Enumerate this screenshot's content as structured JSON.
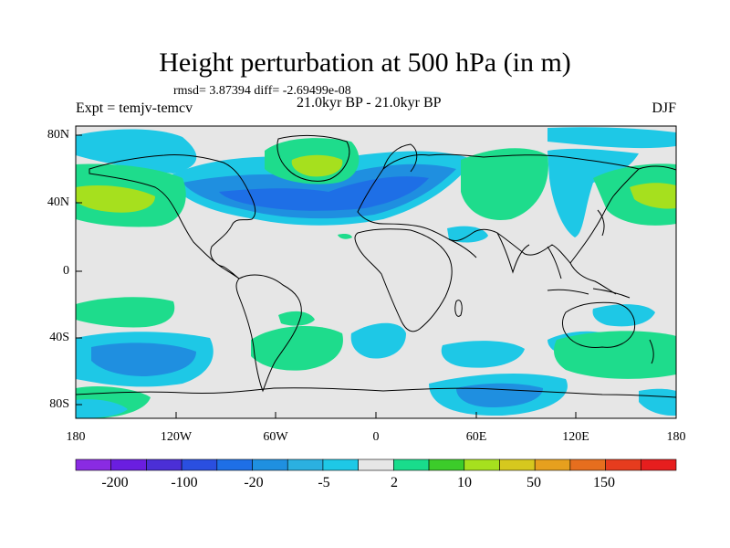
{
  "title": "Height perturbation at 500 hPa (in m)",
  "stats": "rmsd= 3.87394 diff= -2.69499e-08",
  "experiment": "Expt = temjv-temcv",
  "period": "21.0kyr BP - 21.0kyr BP",
  "season": "DJF",
  "lat_labels": [
    "80N",
    "40N",
    "0",
    "40S",
    "80S"
  ],
  "lon_labels": [
    "180",
    "120W",
    "60W",
    "0",
    "60E",
    "120E",
    "180"
  ],
  "colorbar": {
    "colors": [
      "#8a2be2",
      "#6a1ee0",
      "#4b2fd6",
      "#2a4fe0",
      "#1e6fe6",
      "#1f90e0",
      "#2bb0e0",
      "#1ec8e6",
      "#e6e6e6",
      "#19dc8c",
      "#3ccc2a",
      "#a6e01e",
      "#d6c81e",
      "#e6a01e",
      "#e66e1e",
      "#e63c1e",
      "#e61e1e"
    ],
    "labels": [
      "-200",
      "-100",
      "-20",
      "-5",
      "2",
      "10",
      "50",
      "150"
    ]
  },
  "map_colors": {
    "neutral": "#e6e6e6",
    "green_light": "#1edc8c",
    "green": "#3ccc2a",
    "yellowgreen": "#a6e01e",
    "cyan": "#1ec8e6",
    "lightblue": "#2bb0e0",
    "blue": "#1f8fe0",
    "darkblue": "#1e6fe6",
    "coast": "#000000"
  }
}
